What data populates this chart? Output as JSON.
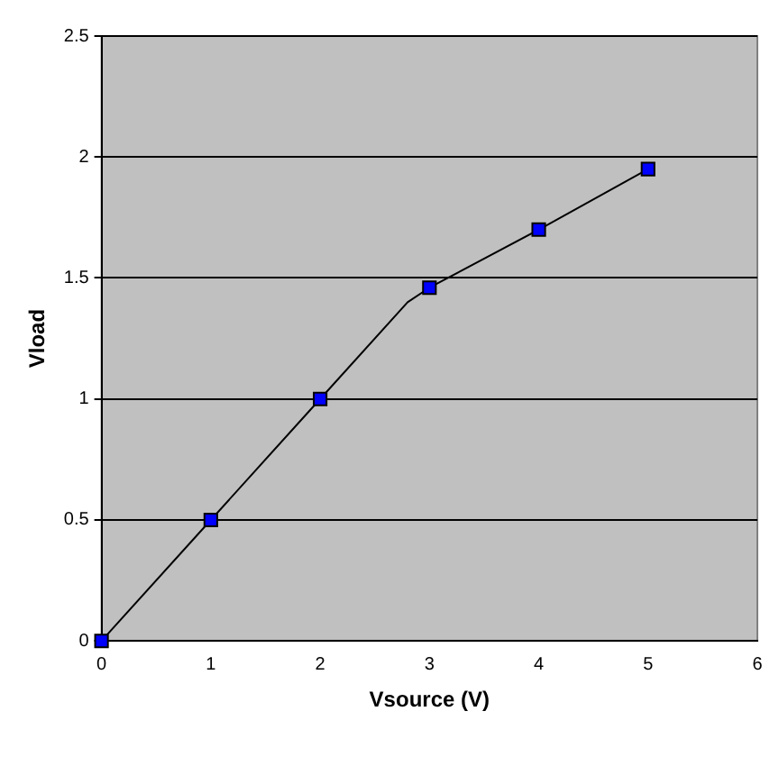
{
  "chart_data": {
    "type": "scatter",
    "xlabel": "Vsource (V)",
    "ylabel": "Vload",
    "series": [
      {
        "type": "line",
        "color": "#000000",
        "marker": "none",
        "x": [
          0,
          1,
          2,
          2.8,
          3,
          4,
          5
        ],
        "values": [
          0,
          0.5,
          1,
          1.4,
          1.46,
          1.7,
          1.95
        ]
      },
      {
        "color": "#0000ff",
        "marker": "square",
        "x": [
          0,
          1,
          2,
          3,
          4,
          5
        ],
        "values": [
          0,
          0.5,
          1,
          1.46,
          1.7,
          1.95
        ]
      }
    ],
    "xlim": [
      0,
      6
    ],
    "xticks": [
      0,
      1,
      2,
      3,
      4,
      5,
      6
    ],
    "ylim": [
      0,
      2.5
    ],
    "yticks": [
      0,
      0.5,
      1,
      1.5,
      2,
      2.5
    ],
    "grid": "y",
    "legend": false
  }
}
